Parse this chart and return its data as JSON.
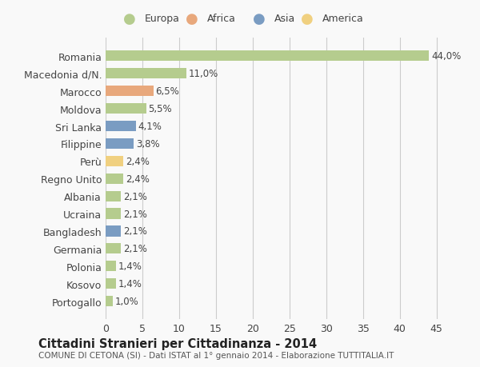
{
  "countries": [
    "Romania",
    "Macedonia d/N.",
    "Marocco",
    "Moldova",
    "Sri Lanka",
    "Filippine",
    "Perù",
    "Regno Unito",
    "Albania",
    "Ucraina",
    "Bangladesh",
    "Germania",
    "Polonia",
    "Kosovo",
    "Portogallo"
  ],
  "values": [
    44.0,
    11.0,
    6.5,
    5.5,
    4.1,
    3.8,
    2.4,
    2.4,
    2.1,
    2.1,
    2.1,
    2.1,
    1.4,
    1.4,
    1.0
  ],
  "labels": [
    "44,0%",
    "11,0%",
    "6,5%",
    "5,5%",
    "4,1%",
    "3,8%",
    "2,4%",
    "2,4%",
    "2,1%",
    "2,1%",
    "2,1%",
    "2,1%",
    "1,4%",
    "1,4%",
    "1,0%"
  ],
  "colors": [
    "#b5cc8e",
    "#b5cc8e",
    "#e8a87c",
    "#b5cc8e",
    "#7a9cc2",
    "#7a9cc2",
    "#f0d080",
    "#b5cc8e",
    "#b5cc8e",
    "#b5cc8e",
    "#7a9cc2",
    "#b5cc8e",
    "#b5cc8e",
    "#b5cc8e",
    "#b5cc8e"
  ],
  "legend_labels": [
    "Europa",
    "Africa",
    "Asia",
    "America"
  ],
  "legend_colors": [
    "#b5cc8e",
    "#e8a87c",
    "#7a9cc2",
    "#f0d080"
  ],
  "title": "Cittadini Stranieri per Cittadinanza - 2014",
  "subtitle": "COMUNE DI CETONA (SI) - Dati ISTAT al 1° gennaio 2014 - Elaborazione TUTTITALIA.IT",
  "xlim": [
    0,
    47
  ],
  "xticks": [
    0,
    5,
    10,
    15,
    20,
    25,
    30,
    35,
    40,
    45
  ],
  "bg_color": "#f9f9f9",
  "grid_color": "#cccccc"
}
